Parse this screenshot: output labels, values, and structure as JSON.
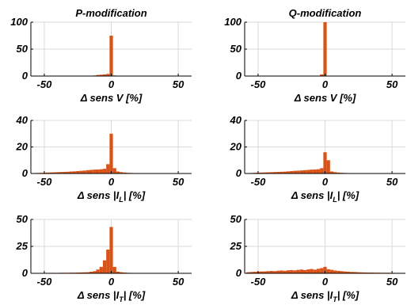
{
  "bar_color": "#d95319",
  "chart_data": [
    {
      "type": "bar",
      "title": "P-modification",
      "xlabel": "Δ sens V [%]",
      "xlim": [
        -60,
        60
      ],
      "ylim": [
        0,
        100
      ],
      "xticks": [
        -50,
        0,
        50
      ],
      "yticks": [
        0,
        50,
        100
      ],
      "grid": true,
      "bin_width": 2.5,
      "bins": [
        {
          "x": -12.5,
          "y": 1
        },
        {
          "x": -10,
          "y": 2
        },
        {
          "x": -7.5,
          "y": 2.5
        },
        {
          "x": -5,
          "y": 3
        },
        {
          "x": -2.5,
          "y": 4
        },
        {
          "x": 0,
          "y": 75
        },
        {
          "x": 2.5,
          "y": 1
        }
      ]
    },
    {
      "type": "bar",
      "title": "Q-modification",
      "xlabel": "Δ sens V [%]",
      "xlim": [
        -60,
        60
      ],
      "ylim": [
        0,
        100
      ],
      "xticks": [
        -50,
        0,
        50
      ],
      "yticks": [
        0,
        50,
        100
      ],
      "grid": true,
      "bin_width": 2.5,
      "bins": [
        {
          "x": -2.5,
          "y": 3
        },
        {
          "x": 0,
          "y": 100
        }
      ]
    },
    {
      "type": "bar",
      "title": "",
      "xlabel": "Δ sens |I_L| [%]",
      "xlim": [
        -60,
        60
      ],
      "ylim": [
        0,
        40
      ],
      "xticks": [
        -50,
        0,
        50
      ],
      "yticks": [
        0,
        20,
        40
      ],
      "grid": true,
      "bin_width": 2.5,
      "bins": [
        {
          "x": -57.5,
          "y": 0.3
        },
        {
          "x": -55,
          "y": 0.4
        },
        {
          "x": -52.5,
          "y": 0.5
        },
        {
          "x": -50,
          "y": 0.6
        },
        {
          "x": -47.5,
          "y": 0.7
        },
        {
          "x": -45,
          "y": 0.8
        },
        {
          "x": -42.5,
          "y": 0.9
        },
        {
          "x": -40,
          "y": 1.0
        },
        {
          "x": -37.5,
          "y": 1.1
        },
        {
          "x": -35,
          "y": 1.2
        },
        {
          "x": -32.5,
          "y": 1.3
        },
        {
          "x": -30,
          "y": 1.5
        },
        {
          "x": -27.5,
          "y": 1.6
        },
        {
          "x": -25,
          "y": 1.8
        },
        {
          "x": -22.5,
          "y": 2.0
        },
        {
          "x": -20,
          "y": 2.2
        },
        {
          "x": -17.5,
          "y": 2.5
        },
        {
          "x": -15,
          "y": 2.7
        },
        {
          "x": -12.5,
          "y": 2.9
        },
        {
          "x": -10,
          "y": 3.0
        },
        {
          "x": -7.5,
          "y": 3.2
        },
        {
          "x": -5,
          "y": 3.5
        },
        {
          "x": -2.5,
          "y": 7
        },
        {
          "x": 0,
          "y": 30
        },
        {
          "x": 2.5,
          "y": 4
        },
        {
          "x": 5,
          "y": 1.5
        },
        {
          "x": 7.5,
          "y": 1.0
        },
        {
          "x": 10,
          "y": 0.7
        },
        {
          "x": 12.5,
          "y": 0.5
        },
        {
          "x": 15,
          "y": 0.4
        },
        {
          "x": 17.5,
          "y": 0.3
        },
        {
          "x": 20,
          "y": 0.3
        },
        {
          "x": 22.5,
          "y": 0.2
        },
        {
          "x": 25,
          "y": 0.2
        }
      ]
    },
    {
      "type": "bar",
      "title": "",
      "xlabel": "Δ sens |I_L| [%]",
      "xlim": [
        -60,
        60
      ],
      "ylim": [
        0,
        40
      ],
      "xticks": [
        -50,
        0,
        50
      ],
      "yticks": [
        0,
        20,
        40
      ],
      "grid": true,
      "bin_width": 2.5,
      "bins": [
        {
          "x": -57.5,
          "y": 0.3
        },
        {
          "x": -55,
          "y": 0.4
        },
        {
          "x": -52.5,
          "y": 0.5
        },
        {
          "x": -50,
          "y": 0.6
        },
        {
          "x": -47.5,
          "y": 0.7
        },
        {
          "x": -45,
          "y": 0.8
        },
        {
          "x": -42.5,
          "y": 0.9
        },
        {
          "x": -40,
          "y": 1.0
        },
        {
          "x": -37.5,
          "y": 1.1
        },
        {
          "x": -35,
          "y": 1.2
        },
        {
          "x": -32.5,
          "y": 1.3
        },
        {
          "x": -30,
          "y": 1.4
        },
        {
          "x": -27.5,
          "y": 1.6
        },
        {
          "x": -25,
          "y": 1.8
        },
        {
          "x": -22.5,
          "y": 2.0
        },
        {
          "x": -20,
          "y": 2.1
        },
        {
          "x": -17.5,
          "y": 2.3
        },
        {
          "x": -15,
          "y": 2.5
        },
        {
          "x": -12.5,
          "y": 2.7
        },
        {
          "x": -10,
          "y": 2.9
        },
        {
          "x": -7.5,
          "y": 3.0
        },
        {
          "x": -5,
          "y": 3.2
        },
        {
          "x": -2.5,
          "y": 4
        },
        {
          "x": 0,
          "y": 16
        },
        {
          "x": 2.5,
          "y": 10
        },
        {
          "x": 5,
          "y": 1.5
        },
        {
          "x": 7.5,
          "y": 1.0
        },
        {
          "x": 10,
          "y": 0.7
        },
        {
          "x": 12.5,
          "y": 0.5
        },
        {
          "x": 15,
          "y": 0.4
        },
        {
          "x": 17.5,
          "y": 0.3
        },
        {
          "x": 20,
          "y": 0.3
        },
        {
          "x": 22.5,
          "y": 0.2
        },
        {
          "x": 25,
          "y": 0.2
        },
        {
          "x": 27.5,
          "y": 0.2
        },
        {
          "x": 30,
          "y": 0.2
        },
        {
          "x": 32.5,
          "y": 0.1
        },
        {
          "x": 35,
          "y": 0.1
        },
        {
          "x": 37.5,
          "y": 0.1
        }
      ]
    },
    {
      "type": "bar",
      "title": "",
      "xlabel": "Δ sens |I_T| [%]",
      "xlim": [
        -60,
        60
      ],
      "ylim": [
        0,
        50
      ],
      "xticks": [
        -50,
        0,
        50
      ],
      "yticks": [
        0,
        25,
        50
      ],
      "grid": true,
      "bin_width": 2.5,
      "bins": [
        {
          "x": -57.5,
          "y": 0.2
        },
        {
          "x": -55,
          "y": 0.3
        },
        {
          "x": -52.5,
          "y": 0.3
        },
        {
          "x": -50,
          "y": 0.3
        },
        {
          "x": -47.5,
          "y": 0.3
        },
        {
          "x": -45,
          "y": 0.4
        },
        {
          "x": -42.5,
          "y": 0.4
        },
        {
          "x": -40,
          "y": 0.4
        },
        {
          "x": -37.5,
          "y": 0.5
        },
        {
          "x": -35,
          "y": 0.5
        },
        {
          "x": -32.5,
          "y": 0.5
        },
        {
          "x": -30,
          "y": 0.6
        },
        {
          "x": -27.5,
          "y": 0.6
        },
        {
          "x": -25,
          "y": 0.7
        },
        {
          "x": -22.5,
          "y": 0.8
        },
        {
          "x": -20,
          "y": 0.9
        },
        {
          "x": -17.5,
          "y": 1.0
        },
        {
          "x": -15,
          "y": 1.5
        },
        {
          "x": -12.5,
          "y": 2.0
        },
        {
          "x": -10,
          "y": 3.5
        },
        {
          "x": -7.5,
          "y": 6
        },
        {
          "x": -5,
          "y": 12
        },
        {
          "x": -2.5,
          "y": 22
        },
        {
          "x": 0,
          "y": 43
        },
        {
          "x": 2.5,
          "y": 6
        },
        {
          "x": 5,
          "y": 1.5
        },
        {
          "x": 7.5,
          "y": 1.0
        },
        {
          "x": 10,
          "y": 0.7
        },
        {
          "x": 12.5,
          "y": 0.5
        },
        {
          "x": 15,
          "y": 0.4
        },
        {
          "x": 17.5,
          "y": 0.3
        },
        {
          "x": 20,
          "y": 0.3
        },
        {
          "x": 22.5,
          "y": 0.2
        },
        {
          "x": 25,
          "y": 0.2
        },
        {
          "x": 27.5,
          "y": 0.2
        },
        {
          "x": 30,
          "y": 0.2
        },
        {
          "x": 32.5,
          "y": 0.2
        },
        {
          "x": 35,
          "y": 0.1
        },
        {
          "x": 37.5,
          "y": 0.1
        },
        {
          "x": 40,
          "y": 0.1
        },
        {
          "x": 42.5,
          "y": 0.1
        },
        {
          "x": 45,
          "y": 0.1
        },
        {
          "x": 47.5,
          "y": 0.1
        }
      ]
    },
    {
      "type": "bar",
      "title": "",
      "xlabel": "Δ sens |I_T| [%]",
      "xlim": [
        -60,
        60
      ],
      "ylim": [
        0,
        50
      ],
      "xticks": [
        -50,
        0,
        50
      ],
      "yticks": [
        0,
        25,
        50
      ],
      "grid": true,
      "bin_width": 2.5,
      "bins": [
        {
          "x": -57.5,
          "y": 1.0
        },
        {
          "x": -55,
          "y": 1.2
        },
        {
          "x": -52.5,
          "y": 1.4
        },
        {
          "x": -50,
          "y": 1.5
        },
        {
          "x": -47.5,
          "y": 1.7
        },
        {
          "x": -45,
          "y": 1.8
        },
        {
          "x": -42.5,
          "y": 2.0
        },
        {
          "x": -40,
          "y": 2.2
        },
        {
          "x": -37.5,
          "y": 2.0
        },
        {
          "x": -35,
          "y": 2.4
        },
        {
          "x": -32.5,
          "y": 2.6
        },
        {
          "x": -30,
          "y": 2.3
        },
        {
          "x": -27.5,
          "y": 2.8
        },
        {
          "x": -25,
          "y": 3.0
        },
        {
          "x": -22.5,
          "y": 2.7
        },
        {
          "x": -20,
          "y": 3.2
        },
        {
          "x": -17.5,
          "y": 3.5
        },
        {
          "x": -15,
          "y": 3.0
        },
        {
          "x": -12.5,
          "y": 3.6
        },
        {
          "x": -10,
          "y": 4.0
        },
        {
          "x": -7.5,
          "y": 3.4
        },
        {
          "x": -5,
          "y": 4.2
        },
        {
          "x": -2.5,
          "y": 4.8
        },
        {
          "x": 0,
          "y": 6.0
        },
        {
          "x": 2.5,
          "y": 3.8
        },
        {
          "x": 5,
          "y": 3.2
        },
        {
          "x": 7.5,
          "y": 2.6
        },
        {
          "x": 10,
          "y": 2.3
        },
        {
          "x": 12.5,
          "y": 2.0
        },
        {
          "x": 15,
          "y": 1.7
        },
        {
          "x": 17.5,
          "y": 1.5
        },
        {
          "x": 20,
          "y": 1.3
        },
        {
          "x": 22.5,
          "y": 1.2
        },
        {
          "x": 25,
          "y": 1.0
        },
        {
          "x": 27.5,
          "y": 0.9
        },
        {
          "x": 30,
          "y": 0.8
        },
        {
          "x": 32.5,
          "y": 0.7
        },
        {
          "x": 35,
          "y": 0.7
        },
        {
          "x": 37.5,
          "y": 0.6
        },
        {
          "x": 40,
          "y": 0.6
        },
        {
          "x": 42.5,
          "y": 0.5
        },
        {
          "x": 45,
          "y": 0.5
        },
        {
          "x": 47.5,
          "y": 0.5
        },
        {
          "x": 50,
          "y": 0.4
        },
        {
          "x": 52.5,
          "y": 0.4
        },
        {
          "x": 55,
          "y": 0.4
        },
        {
          "x": 57.5,
          "y": 0.3
        }
      ]
    }
  ]
}
